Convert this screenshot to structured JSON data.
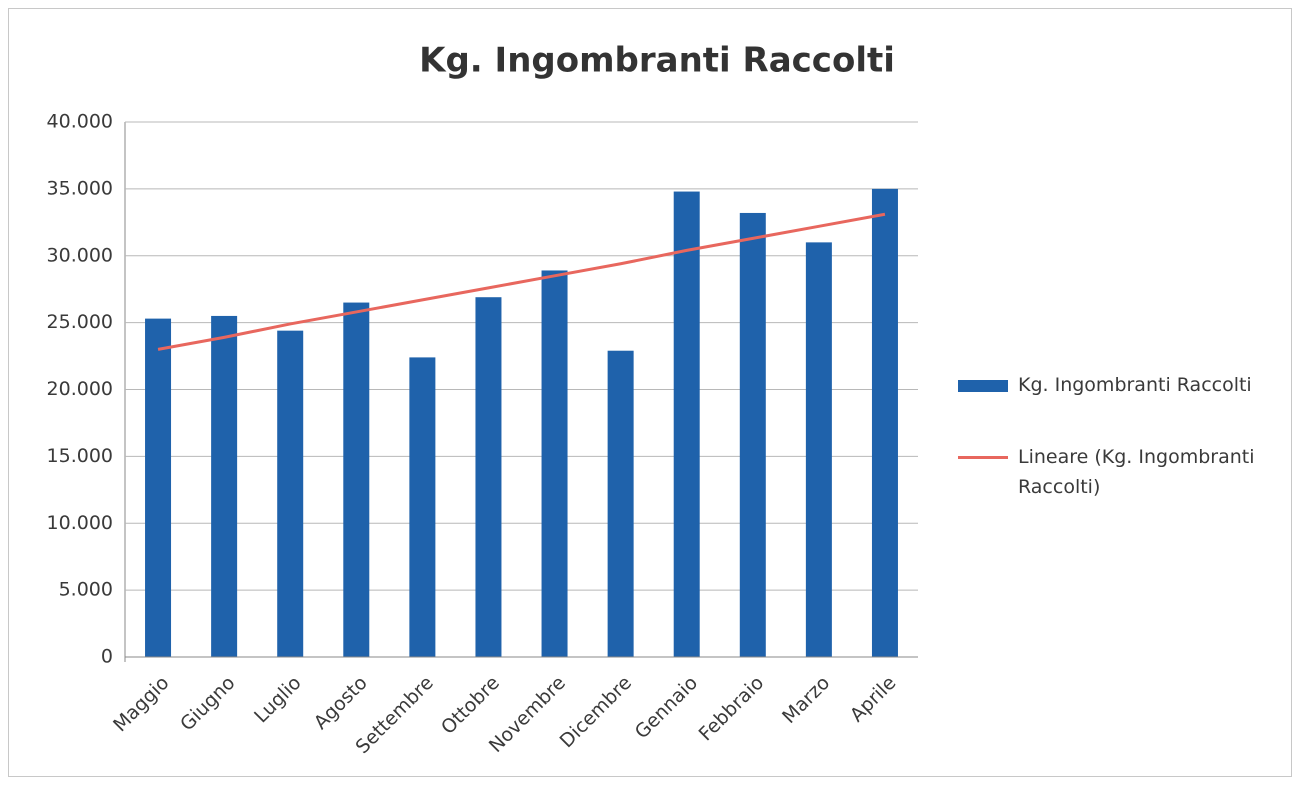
{
  "chart_data": {
    "type": "bar",
    "title": "Kg. Ingombranti Raccolti",
    "categories": [
      "Maggio",
      "Giugno",
      "Luglio",
      "Agosto",
      "Settembre",
      "Ottobre",
      "Novembre",
      "Dicembre",
      "Gennaio",
      "Febbraio",
      "Marzo",
      "Aprile"
    ],
    "series": [
      {
        "name": "Kg. Ingombranti Raccolti",
        "type": "bar",
        "color": "#1f62ab",
        "values": [
          25300,
          25500,
          24400,
          26500,
          22400,
          26900,
          28900,
          22900,
          34800,
          33200,
          31000,
          35000
        ]
      },
      {
        "name": "Lineare (Kg. Ingombranti Raccolti)",
        "type": "line",
        "color": "#e8675e",
        "values": [
          23000,
          23900,
          24900,
          25800,
          26700,
          27600,
          28500,
          29400,
          30400,
          31300,
          32200,
          33100
        ]
      }
    ],
    "ylim": [
      0,
      40000
    ],
    "yticks": [
      0,
      {
        "value": 5000,
        "label": "5.000"
      },
      {
        "value": 10000,
        "label": "10.000"
      },
      {
        "value": 15000,
        "label": "15.000"
      },
      {
        "value": 20000,
        "label": "20.000"
      },
      {
        "value": 25000,
        "label": "25.000"
      },
      {
        "value": 30000,
        "label": "30.000"
      },
      {
        "value": 35000,
        "label": "35.000"
      },
      {
        "value": 40000,
        "label": "40.000"
      }
    ],
    "grid": true,
    "legend": "right"
  }
}
